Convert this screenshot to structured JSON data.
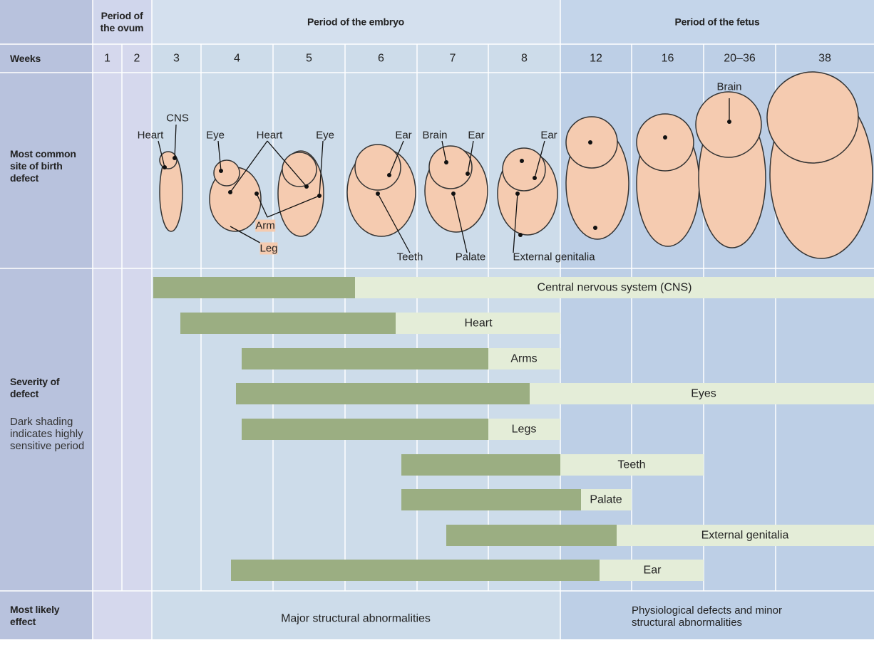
{
  "header": {
    "period_ovum": "Period of the ovum",
    "period_embryo": "Period of the embryo",
    "period_fetus": "Period of the fetus"
  },
  "rows": {
    "weeks": "Weeks",
    "site": "Most common site of birth defect",
    "severity": "Severity of defect",
    "severity_note": "Dark shading indicates highly sensitive period",
    "effect": "Most likely effect"
  },
  "weeks": [
    "1",
    "2",
    "3",
    "4",
    "5",
    "6",
    "7",
    "8",
    "12",
    "16",
    "20–36",
    "38"
  ],
  "site_labels": [
    "CNS",
    "Heart",
    "Eye",
    "Heart",
    "Eye",
    "Arm",
    "Leg",
    "Ear",
    "Brain",
    "Ear",
    "Ear",
    "Teeth",
    "Palate",
    "External genitalia",
    "Brain"
  ],
  "defects": [
    "Central nervous system (CNS)",
    "Heart",
    "Arms",
    "Eyes",
    "Legs",
    "Teeth",
    "Palate",
    "External genitalia",
    "Ear"
  ],
  "effects": [
    "Major structural abnormalities",
    "Physiological defects and minor structural abnormalities"
  ]
}
